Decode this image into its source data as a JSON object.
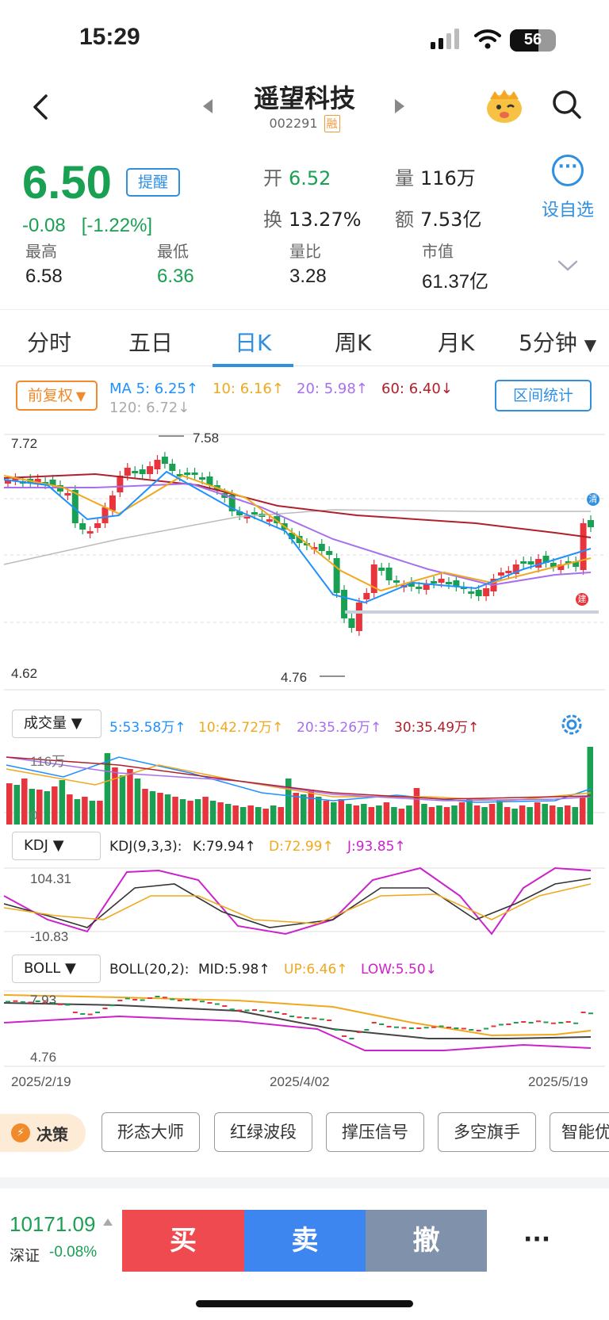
{
  "status": {
    "time": "15:29",
    "battery": "56"
  },
  "header": {
    "title": "遥望科技",
    "code": "002291",
    "margin_badge": "融"
  },
  "quote": {
    "price": "6.50",
    "remind": "提醒",
    "change": "-0.08",
    "change_pct": "[-1.22%]",
    "open_label": "开",
    "open": "6.52",
    "volume_label": "量",
    "volume": "116万",
    "turnover_label": "换",
    "turnover": "13.27%",
    "amount_label": "额",
    "amount": "7.53亿",
    "add_watch": "设自选",
    "high_label": "最高",
    "high": "6.58",
    "low_label": "最低",
    "low": "6.36",
    "vol_ratio_label": "量比",
    "vol_ratio": "3.28",
    "mkt_cap_label": "市值",
    "mkt_cap": "61.37亿"
  },
  "tabs": [
    "分时",
    "五日",
    "日K",
    "周K",
    "月K",
    "5分钟"
  ],
  "kline": {
    "adjust": "前复权",
    "ma5": "MA 5: 6.25↑",
    "ma10": "10: 6.16↑",
    "ma20": "20: 5.98↑",
    "ma60": "60: 6.40↓",
    "ma120": "120: 6.72↓",
    "interval_stats": "区间统计",
    "y_top": "7.72",
    "y_bottom": "4.62",
    "high_mark": "7.58",
    "low_mark": "4.76",
    "tag_qing": "清",
    "tag_jian": "建"
  },
  "volume": {
    "label": "成交量",
    "ma5": "5:53.58万↑",
    "ma10": "10:42.72万↑",
    "ma20": "20:35.26万↑",
    "ma30": "30:35.49万↑",
    "y_top": "116万",
    "y_bottom": "0"
  },
  "kdj": {
    "label": "KDJ",
    "params": "KDJ(9,3,3):",
    "k": "K:79.94↑",
    "d": "D:72.99↑",
    "j": "J:93.85↑",
    "y_top": "104.31",
    "y_bottom": "-10.83"
  },
  "boll": {
    "label": "BOLL",
    "params": "BOLL(20,2):",
    "mid": "MID:5.98↑",
    "up": "UP:6.46↑",
    "low": "LOW:5.50↓",
    "y_top": "7.93",
    "y_bottom": "4.76"
  },
  "dates": [
    "2025/2/19",
    "2025/4/02",
    "2025/5/19"
  ],
  "tools": {
    "decision": "决策",
    "chips": [
      "形态大师",
      "红绿波段",
      "撑压信号",
      "多空旗手",
      "智能优"
    ]
  },
  "bottom": {
    "index_value": "10171.09",
    "index_name": "深证",
    "index_change": "-0.08%",
    "buy": "买",
    "sell": "卖",
    "cancel": "撤",
    "more": "···"
  },
  "colors": {
    "up": "#e8343c",
    "down": "#1aa052",
    "blue": "#2f8fe0",
    "ma5": "#1e90ff",
    "ma10": "#f0a81e",
    "ma20": "#a86ef0",
    "ma60": "#b0202a",
    "ma120": "#bbbbbb"
  }
}
